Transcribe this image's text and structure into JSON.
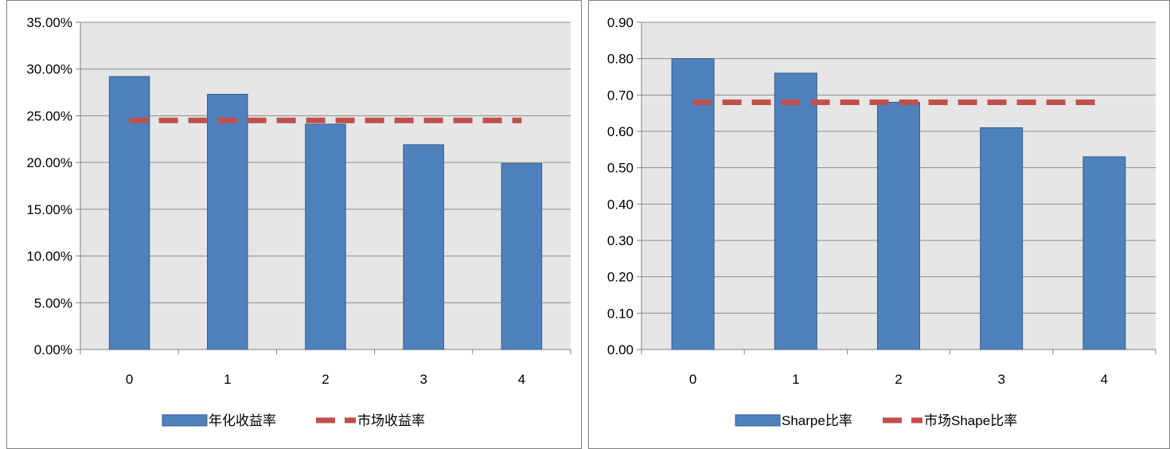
{
  "colors": {
    "bar": "#4f81bd",
    "bar_border": "#385d8a",
    "line": "#c0504d",
    "plot_bg": "#e6e6e6",
    "grid": "#8c8c8c"
  },
  "chart_data": [
    {
      "type": "bar",
      "title": "",
      "xlabel": "",
      "ylabel": "",
      "categories": [
        "0",
        "1",
        "2",
        "3",
        "4"
      ],
      "ylim": [
        0,
        35
      ],
      "ytick_step": 5,
      "ytick_labels": [
        "0.00%",
        "5.00%",
        "10.00%",
        "15.00%",
        "20.00%",
        "25.00%",
        "30.00%",
        "35.00%"
      ],
      "grid": true,
      "legend_position": "bottom",
      "series": [
        {
          "name": "年化收益率",
          "kind": "bar",
          "values": [
            29.2,
            27.3,
            24.1,
            21.9,
            19.9
          ]
        },
        {
          "name": "市场收益率",
          "kind": "dashed-line",
          "values": [
            24.5,
            24.5,
            24.5,
            24.5,
            24.5
          ]
        }
      ]
    },
    {
      "type": "bar",
      "title": "",
      "xlabel": "",
      "ylabel": "",
      "categories": [
        "0",
        "1",
        "2",
        "3",
        "4"
      ],
      "ylim": [
        0,
        0.9
      ],
      "ytick_step": 0.1,
      "ytick_labels": [
        "0.00",
        "0.10",
        "0.20",
        "0.30",
        "0.40",
        "0.50",
        "0.60",
        "0.70",
        "0.80",
        "0.90"
      ],
      "grid": true,
      "legend_position": "bottom",
      "series": [
        {
          "name": "Sharpe比率",
          "kind": "bar",
          "values": [
            0.8,
            0.76,
            0.68,
            0.61,
            0.53
          ]
        },
        {
          "name": "市场Shape比率",
          "kind": "dashed-line",
          "values": [
            0.68,
            0.68,
            0.68,
            0.68,
            0.68
          ]
        }
      ]
    }
  ]
}
